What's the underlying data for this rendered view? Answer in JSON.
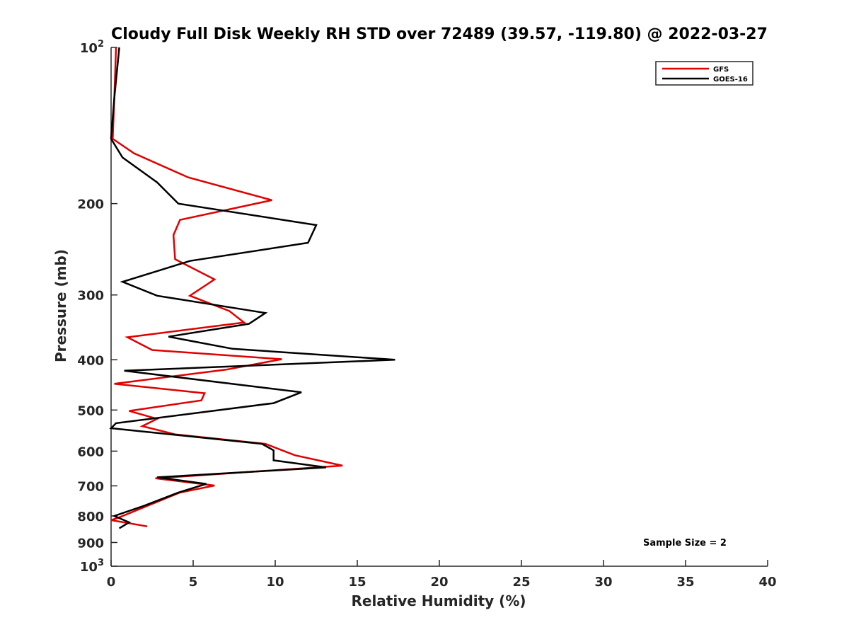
{
  "chart_data": {
    "type": "line",
    "title": "Cloudy Full Disk Weekly RH STD over 72489 (39.57, -119.80) @ 2022-03-27",
    "xlabel": "Relative Humidity (%)",
    "ylabel": "Pressure (mb)",
    "xlim": [
      0,
      40
    ],
    "ylim": [
      100,
      1000
    ],
    "y_scale": "log",
    "y_direction": "reversed",
    "grid": false,
    "legend_position": "top-right",
    "x_ticks": [
      0,
      5,
      10,
      15,
      20,
      25,
      30,
      35,
      40
    ],
    "x_tick_labels": [
      "0",
      "5",
      "10",
      "15",
      "20",
      "25",
      "30",
      "35",
      "40"
    ],
    "y_ticks": [
      100,
      200,
      300,
      400,
      500,
      600,
      700,
      800,
      900,
      1000
    ],
    "y_tick_labels": [
      {
        "base": "10",
        "exp": "2"
      },
      {
        "base": "200",
        "exp": ""
      },
      {
        "base": "300",
        "exp": ""
      },
      {
        "base": "400",
        "exp": ""
      },
      {
        "base": "500",
        "exp": ""
      },
      {
        "base": "600",
        "exp": ""
      },
      {
        "base": "700",
        "exp": ""
      },
      {
        "base": "800",
        "exp": ""
      },
      {
        "base": "900",
        "exp": ""
      },
      {
        "base": "10",
        "exp": "3"
      }
    ],
    "series": [
      {
        "name": "GFS",
        "color": "#e00000",
        "points": [
          {
            "rh": 0.3,
            "p": 100
          },
          {
            "rh": 0.2,
            "p": 125
          },
          {
            "rh": 0.1,
            "p": 150
          },
          {
            "rh": 1.4,
            "p": 160
          },
          {
            "rh": 4.7,
            "p": 178
          },
          {
            "rh": 9.8,
            "p": 197
          },
          {
            "rh": 4.2,
            "p": 215
          },
          {
            "rh": 3.8,
            "p": 230
          },
          {
            "rh": 3.9,
            "p": 256
          },
          {
            "rh": 6.3,
            "p": 280
          },
          {
            "rh": 4.8,
            "p": 301
          },
          {
            "rh": 7.2,
            "p": 322
          },
          {
            "rh": 8.1,
            "p": 339
          },
          {
            "rh": 1.0,
            "p": 362
          },
          {
            "rh": 2.5,
            "p": 383
          },
          {
            "rh": 10.4,
            "p": 399
          },
          {
            "rh": 7.0,
            "p": 418
          },
          {
            "rh": 0.2,
            "p": 445
          },
          {
            "rh": 5.7,
            "p": 464
          },
          {
            "rh": 5.5,
            "p": 479
          },
          {
            "rh": 1.1,
            "p": 502
          },
          {
            "rh": 2.8,
            "p": 520
          },
          {
            "rh": 1.9,
            "p": 537
          },
          {
            "rh": 3.9,
            "p": 557
          },
          {
            "rh": 9.4,
            "p": 581
          },
          {
            "rh": 11.2,
            "p": 611
          },
          {
            "rh": 14.1,
            "p": 640
          },
          {
            "rh": 2.7,
            "p": 677
          },
          {
            "rh": 6.3,
            "p": 699
          },
          {
            "rh": 4.2,
            "p": 721
          },
          {
            "rh": 0.5,
            "p": 805
          },
          {
            "rh": 0.0,
            "p": 815
          },
          {
            "rh": 2.2,
            "p": 838
          }
        ]
      },
      {
        "name": "GOES-16",
        "color": "#000000",
        "points": [
          {
            "rh": 0.5,
            "p": 100
          },
          {
            "rh": 0.2,
            "p": 125
          },
          {
            "rh": 0.0,
            "p": 150
          },
          {
            "rh": 0.7,
            "p": 163
          },
          {
            "rh": 2.8,
            "p": 182
          },
          {
            "rh": 4.1,
            "p": 200
          },
          {
            "rh": 12.5,
            "p": 220
          },
          {
            "rh": 12.0,
            "p": 238
          },
          {
            "rh": 4.8,
            "p": 258
          },
          {
            "rh": 0.7,
            "p": 283
          },
          {
            "rh": 2.8,
            "p": 301
          },
          {
            "rh": 9.4,
            "p": 325
          },
          {
            "rh": 8.4,
            "p": 341
          },
          {
            "rh": 3.5,
            "p": 361
          },
          {
            "rh": 7.4,
            "p": 381
          },
          {
            "rh": 17.3,
            "p": 400
          },
          {
            "rh": 0.8,
            "p": 420
          },
          {
            "rh": 11.6,
            "p": 462
          },
          {
            "rh": 9.9,
            "p": 485
          },
          {
            "rh": 0.3,
            "p": 530
          },
          {
            "rh": 0.0,
            "p": 542
          },
          {
            "rh": 9.2,
            "p": 581
          },
          {
            "rh": 9.9,
            "p": 598
          },
          {
            "rh": 9.9,
            "p": 625
          },
          {
            "rh": 13.1,
            "p": 645
          },
          {
            "rh": 2.8,
            "p": 674
          },
          {
            "rh": 5.8,
            "p": 694
          },
          {
            "rh": 4.1,
            "p": 721
          },
          {
            "rh": 2.0,
            "p": 765
          },
          {
            "rh": 0.2,
            "p": 800
          },
          {
            "rh": 1.1,
            "p": 823
          },
          {
            "rh": 0.5,
            "p": 845
          }
        ]
      }
    ],
    "annotations": [
      {
        "text": "Sample Size = 2",
        "position": "bottom-right"
      }
    ]
  }
}
